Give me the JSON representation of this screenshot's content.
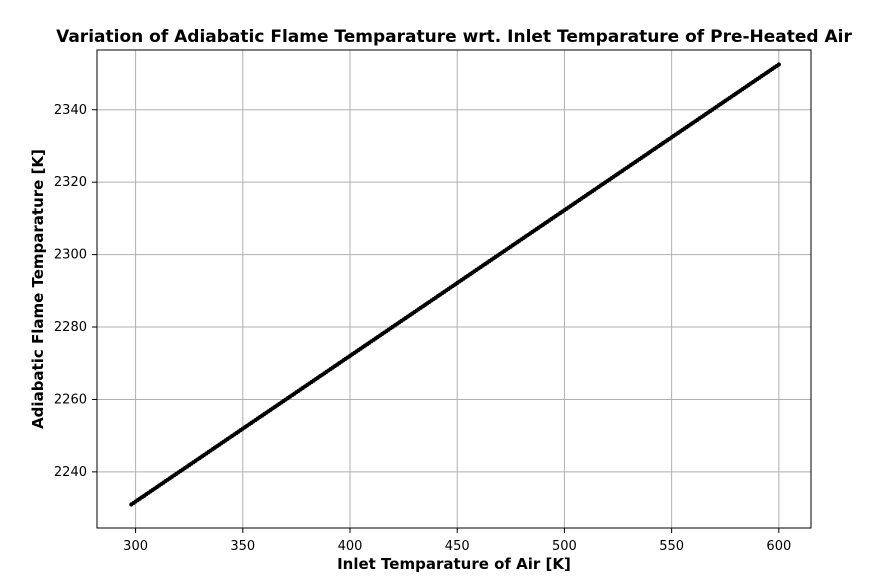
{
  "chart_data": {
    "type": "line",
    "title": "Variation of Adiabatic Flame Temparature wrt. Inlet Temparature of Pre-Heated Air",
    "xlabel": "Inlet Temparature of Air [K]",
    "ylabel": "Adiabatic Flame Temparature [K]",
    "xlim": [
      282,
      615
    ],
    "ylim": [
      2224.5,
      2356.5
    ],
    "x_ticks": [
      300,
      350,
      400,
      450,
      500,
      550,
      600
    ],
    "y_ticks": [
      2240,
      2260,
      2280,
      2300,
      2320,
      2340
    ],
    "grid": true,
    "legend": "none",
    "series": [
      {
        "color": "#000000",
        "marker": "circle",
        "x_start": 298,
        "x_end": 600,
        "x_step": 1,
        "y_start": 2231,
        "y_end": 2352.5
      }
    ]
  },
  "colors": {
    "background": "#ffffff",
    "axes": "#000000",
    "grid": "#b0b0b0",
    "series": "#000000"
  }
}
